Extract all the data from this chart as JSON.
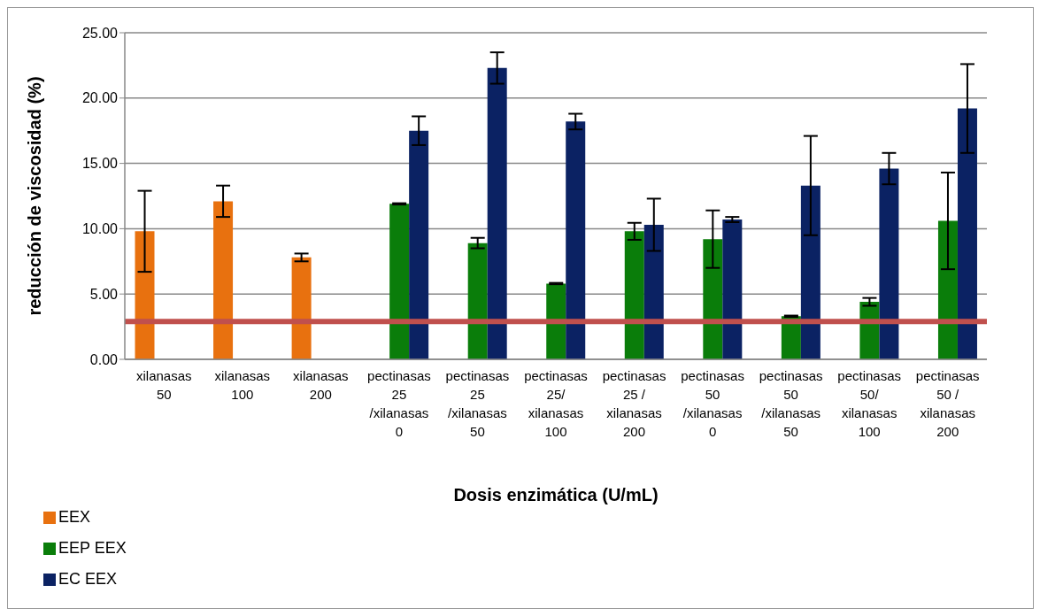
{
  "chart_data": {
    "type": "bar",
    "xlabel": "Dosis enzimática (U/mL)",
    "ylabel": "reducción de viscosidad (%)",
    "categories": [
      "xilanasas 50",
      "xilanasas 100",
      "xilanasas 200",
      "pectinasas 25 /xilanasas 0",
      "pectinasas 25 /xilanasas 50",
      "pectinasas 25/ xilanasas 100",
      "pectinasas 25 / xilanasas 200",
      "pectinasas 50 /xilanasas 0",
      "pectinasas 50 /xilanasas 50",
      "pectinasas 50/ xilanasas 100",
      "pectinasas 50 / xilanasas 200"
    ],
    "series": [
      {
        "name": "EEX",
        "color": "#e8710f",
        "values": [
          9.8,
          12.1,
          7.8,
          null,
          null,
          null,
          null,
          null,
          null,
          null,
          null
        ],
        "errors": [
          3.1,
          1.2,
          0.3,
          null,
          null,
          null,
          null,
          null,
          null,
          null,
          null
        ]
      },
      {
        "name": "EEP EEX",
        "color": "#0a7d0a",
        "values": [
          null,
          null,
          null,
          11.9,
          8.9,
          5.8,
          9.8,
          9.2,
          3.3,
          4.4,
          10.6
        ],
        "errors": [
          null,
          null,
          null,
          0.05,
          0.4,
          0.05,
          0.65,
          2.2,
          0.05,
          0.3,
          3.7
        ]
      },
      {
        "name": "EC EEX",
        "color": "#0b2263",
        "values": [
          null,
          null,
          null,
          17.5,
          22.3,
          18.2,
          10.3,
          10.7,
          13.3,
          14.6,
          19.2
        ],
        "errors": [
          null,
          null,
          null,
          1.1,
          1.2,
          0.6,
          2.0,
          0.2,
          3.8,
          1.2,
          3.4
        ]
      }
    ],
    "ylim": [
      0,
      25
    ],
    "yticks": [
      {
        "value": 0,
        "label": "0.00"
      },
      {
        "value": 5,
        "label": "5.00"
      },
      {
        "value": 10,
        "label": "10.00"
      },
      {
        "value": 15,
        "label": "15.00"
      },
      {
        "value": 20,
        "label": "20.00"
      },
      {
        "value": 25,
        "label": "25.00"
      }
    ],
    "ref_lines": [
      {
        "axis": "y",
        "value": 2.9,
        "label": null,
        "color": "#c0504d"
      }
    ],
    "grid": "y",
    "legend": "bottom left"
  }
}
